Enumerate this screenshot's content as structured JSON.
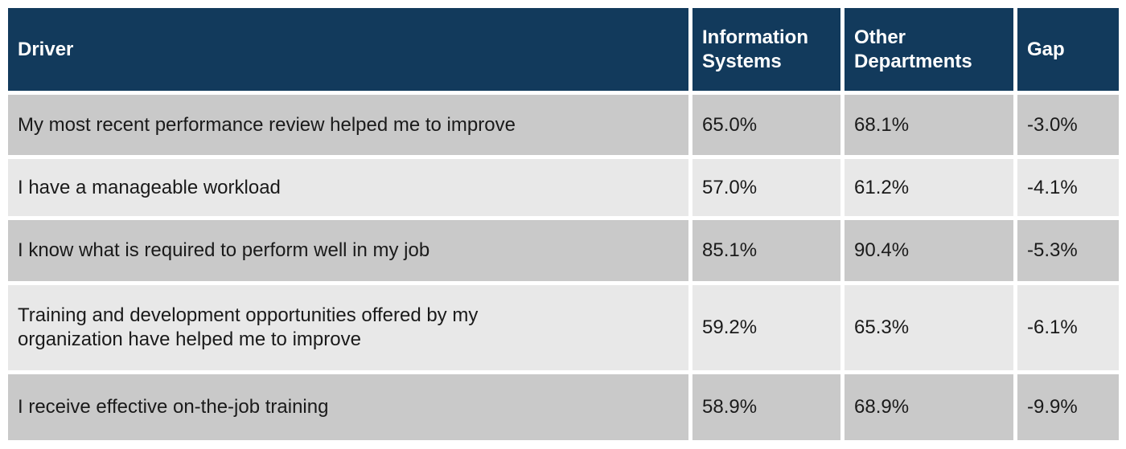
{
  "colors": {
    "header_bg": "#123a5c",
    "header_text": "#ffffff",
    "row_band_dark": "#c9c9c9",
    "row_band_light": "#e8e8e8",
    "body_text": "#1a1a1a",
    "separator": "#ffffff"
  },
  "table": {
    "headers": [
      "Driver",
      "Information Systems",
      "Other Departments",
      "Gap"
    ],
    "rows": [
      {
        "driver": "My most recent performance review helped me to improve",
        "information_systems": "65.0%",
        "other_departments": "68.1%",
        "gap": "-3.0%"
      },
      {
        "driver": "I have a manageable workload",
        "information_systems": "57.0%",
        "other_departments": "61.2%",
        "gap": "-4.1%"
      },
      {
        "driver": "I know what is required to perform well in my job",
        "information_systems": "85.1%",
        "other_departments": "90.4%",
        "gap": "-5.3%"
      },
      {
        "driver": "Training and development opportunities offered by my\norganization have helped me to improve",
        "information_systems": "59.2%",
        "other_departments": "65.3%",
        "gap": "-6.1%"
      },
      {
        "driver": "I receive effective on-the-job training",
        "information_systems": "58.9%",
        "other_departments": "68.9%",
        "gap": "-9.9%"
      }
    ]
  },
  "chart_data": {
    "type": "table",
    "title": "",
    "categories": [
      "My most recent performance review helped me to improve",
      "I have a manageable workload",
      "I know what is required to perform well in my job",
      "Training and development opportunities offered by my organization have helped me to improve",
      "I receive effective on-the-job training"
    ],
    "series": [
      {
        "name": "Information Systems",
        "values": [
          65.0,
          57.0,
          85.1,
          59.2,
          58.9
        ]
      },
      {
        "name": "Other Departments",
        "values": [
          68.1,
          61.2,
          90.4,
          65.3,
          68.9
        ]
      },
      {
        "name": "Gap",
        "values": [
          -3.0,
          -4.1,
          -5.3,
          -6.1,
          -9.9
        ]
      }
    ],
    "unit": "%",
    "layout": "banded rows, dark navy header, no gridlines, white cell separators"
  }
}
